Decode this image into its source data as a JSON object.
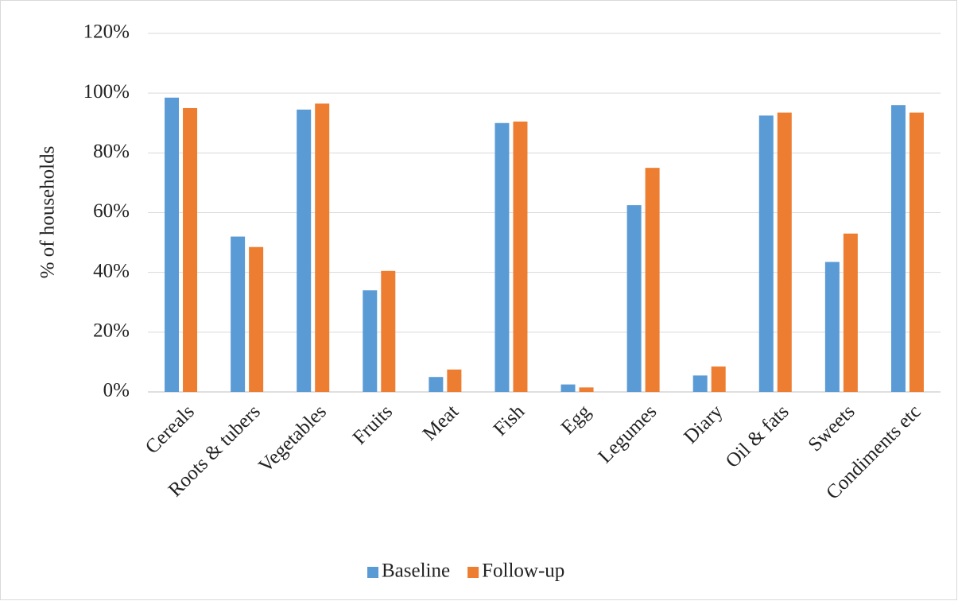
{
  "chart_data": {
    "type": "bar",
    "y_label": "% of households",
    "categories": [
      "Cereals",
      "Roots & tubers",
      "Vegetables",
      "Fruits",
      "Meat",
      "Fish",
      "Egg",
      "Legumes",
      "Diary",
      "Oil & fats",
      "Sweets",
      "Condiments etc"
    ],
    "series": [
      {
        "name": "Baseline",
        "color": "#5b9bd5",
        "values": [
          98.5,
          52,
          94.5,
          34,
          5,
          90,
          2.5,
          62.5,
          5.5,
          92.5,
          43.5,
          96
        ]
      },
      {
        "name": "Follow-up",
        "color": "#ed7d31",
        "values": [
          95,
          48.5,
          96.5,
          40.5,
          7.5,
          90.5,
          1.5,
          75,
          8.5,
          93.5,
          53,
          93.5
        ]
      }
    ],
    "ylim": [
      0,
      120
    ],
    "yticks": [
      {
        "value": 0,
        "label": "0%"
      },
      {
        "value": 20,
        "label": "20%"
      },
      {
        "value": 40,
        "label": "40%"
      },
      {
        "value": 60,
        "label": "60%"
      },
      {
        "value": 80,
        "label": "80%"
      },
      {
        "value": 100,
        "label": "100%"
      },
      {
        "value": 120,
        "label": "120%"
      }
    ],
    "grid": true,
    "legend": "bottom"
  }
}
